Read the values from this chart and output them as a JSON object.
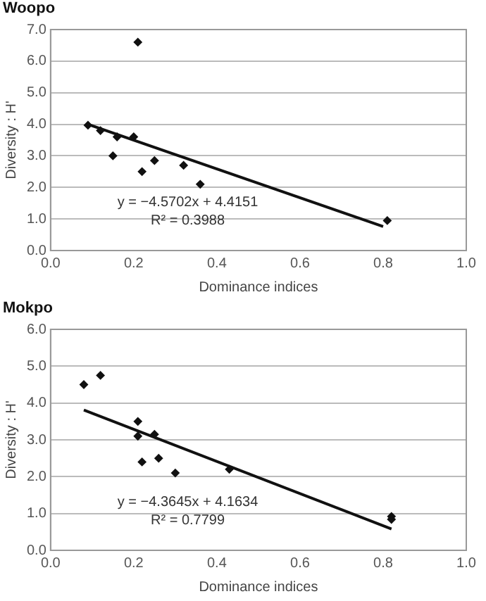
{
  "chart_data": [
    {
      "type": "scatter",
      "title": "Woopo",
      "xlabel": "Dominance indices",
      "ylabel": "Diversity : H'",
      "xlim": [
        0,
        1
      ],
      "xticks": [
        {
          "value": 0,
          "label": "0.0"
        },
        {
          "value": 0.2,
          "label": "0.2"
        },
        {
          "value": 0.4,
          "label": "0.4"
        },
        {
          "value": 0.6,
          "label": "0.6"
        },
        {
          "value": 0.8,
          "label": "0.8"
        },
        {
          "value": 1,
          "label": "1.0"
        }
      ],
      "ylim": [
        0,
        7
      ],
      "yticks": [
        {
          "value": 0,
          "label": "0.0"
        },
        {
          "value": 1,
          "label": "1.0"
        },
        {
          "value": 2,
          "label": "2.0"
        },
        {
          "value": 3,
          "label": "3.0"
        },
        {
          "value": 4,
          "label": "4.0"
        },
        {
          "value": 5,
          "label": "5.0"
        },
        {
          "value": 6,
          "label": "6.0"
        },
        {
          "value": 7,
          "label": "7.0"
        }
      ],
      "grid": "y",
      "legend": false,
      "series": [
        {
          "marker": "diamond",
          "color": "#111111",
          "x": [
            0.09,
            0.12,
            0.16,
            0.15,
            0.2,
            0.21,
            0.22,
            0.25,
            0.32,
            0.36,
            0.81
          ],
          "values": [
            3.97,
            3.8,
            3.6,
            3.0,
            3.6,
            6.6,
            2.5,
            2.85,
            2.7,
            2.1,
            0.95
          ]
        },
        {
          "type": "line",
          "marker": "none",
          "color": "#111111",
          "x": [
            0.09,
            0.8
          ],
          "values": [
            4.0,
            0.76
          ]
        }
      ],
      "annotations": [
        "y = −4.5702x + 4.4151",
        "R² = 0.3988"
      ]
    },
    {
      "type": "scatter",
      "title": "Mokpo",
      "xlabel": "Dominance indices",
      "ylabel": "Diversity : H'",
      "xlim": [
        0,
        1
      ],
      "xticks": [
        {
          "value": 0,
          "label": "0.0"
        },
        {
          "value": 0.2,
          "label": "0.2"
        },
        {
          "value": 0.4,
          "label": "0.4"
        },
        {
          "value": 0.6,
          "label": "0.6"
        },
        {
          "value": 0.8,
          "label": "0.8"
        },
        {
          "value": 1,
          "label": "1.0"
        }
      ],
      "ylim": [
        0,
        6
      ],
      "yticks": [
        {
          "value": 0,
          "label": "0.0"
        },
        {
          "value": 1,
          "label": "1.0"
        },
        {
          "value": 2,
          "label": "2.0"
        },
        {
          "value": 3,
          "label": "3.0"
        },
        {
          "value": 4,
          "label": "4.0"
        },
        {
          "value": 5,
          "label": "5.0"
        },
        {
          "value": 6,
          "label": "6.0"
        }
      ],
      "grid": "y",
      "legend": false,
      "series": [
        {
          "marker": "diamond",
          "color": "#111111",
          "x": [
            0.08,
            0.12,
            0.21,
            0.21,
            0.25,
            0.22,
            0.26,
            0.3,
            0.43,
            0.82,
            0.82
          ],
          "values": [
            4.5,
            4.75,
            3.5,
            3.1,
            3.15,
            2.4,
            2.5,
            2.1,
            2.2,
            0.92,
            0.84
          ]
        },
        {
          "type": "line",
          "marker": "none",
          "color": "#111111",
          "x": [
            0.08,
            0.82
          ],
          "values": [
            3.81,
            0.58
          ]
        }
      ],
      "annotations": [
        "y = −4.3645x + 4.1634",
        "R² = 0.7799"
      ]
    }
  ]
}
